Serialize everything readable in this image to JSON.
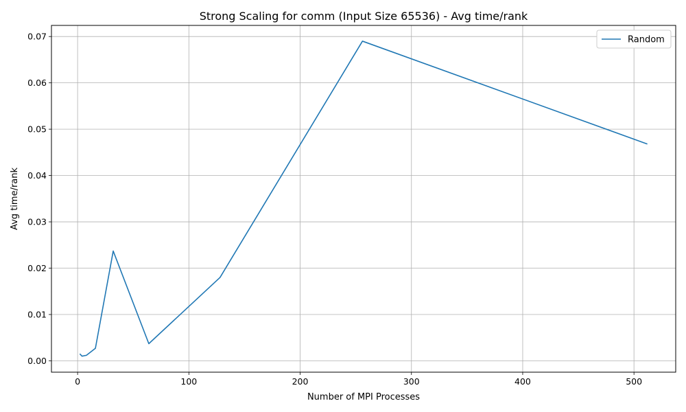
{
  "chart_data": {
    "type": "line",
    "title": "Strong Scaling for comm (Input Size 65536) - Avg time/rank",
    "xlabel": "Number of MPI Processes",
    "ylabel": "Avg time/rank",
    "xlim": [
      -23.5,
      537.5
    ],
    "ylim": [
      -0.00245,
      0.0724
    ],
    "xticks": [
      0,
      100,
      200,
      300,
      400,
      500
    ],
    "yticks": [
      0.0,
      0.01,
      0.02,
      0.03,
      0.04,
      0.05,
      0.06,
      0.07
    ],
    "xtick_labels": [
      "0",
      "100",
      "200",
      "300",
      "400",
      "500"
    ],
    "ytick_labels": [
      "0.00",
      "0.01",
      "0.02",
      "0.03",
      "0.04",
      "0.05",
      "0.06",
      "0.07"
    ],
    "grid": true,
    "legend_position": "top-right",
    "series": [
      {
        "name": "Random",
        "color": "#1f77b4",
        "x": [
          2,
          4,
          8,
          16,
          32,
          64,
          128,
          256,
          512
        ],
        "y": [
          0.0015,
          0.001,
          0.0012,
          0.0027,
          0.0237,
          0.0037,
          0.018,
          0.069,
          0.0468
        ]
      }
    ]
  }
}
